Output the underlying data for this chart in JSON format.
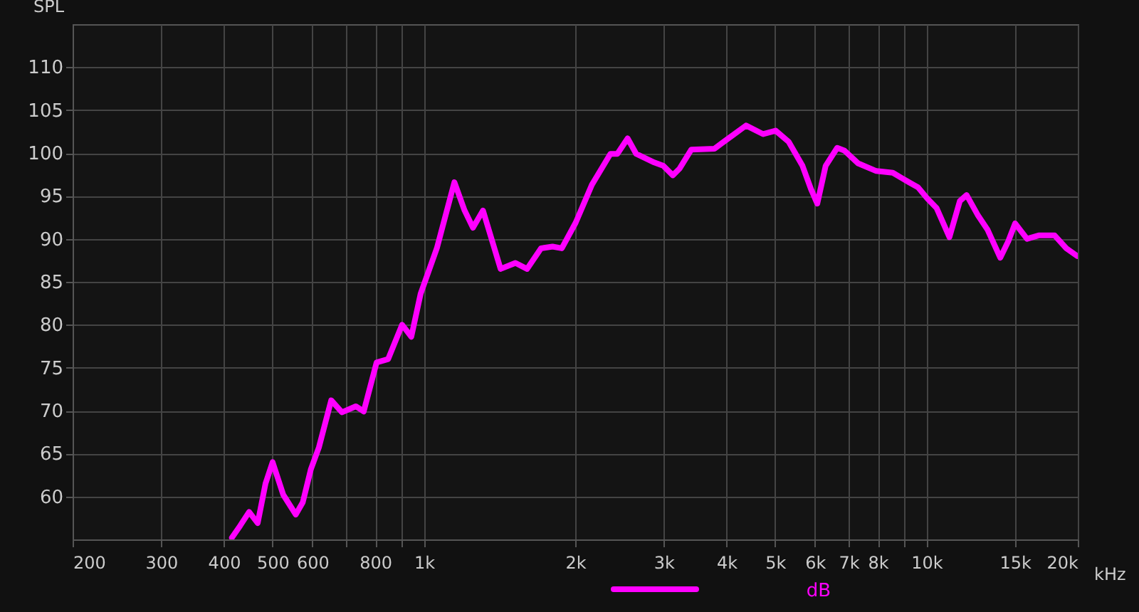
{
  "chart_data": {
    "type": "line",
    "ylabel": "SPL",
    "annotations": [
      "dB"
    ],
    "x": [
      415,
      431,
      449,
      467,
      484,
      500,
      525,
      556,
      574,
      596,
      618,
      654,
      687,
      732,
      759,
      805,
      849,
      905,
      944,
      985,
      1061,
      1150,
      1205,
      1252,
      1311,
      1421,
      1521,
      1604,
      1710,
      1803,
      1881,
      2005,
      2159,
      2350,
      2426,
      2543,
      2645,
      2873,
      2996,
      3128,
      3228,
      3405,
      3785,
      4122,
      4375,
      4732,
      5011,
      5319,
      5667,
      5890,
      6064,
      6300,
      6643,
      6860,
      7310,
      7946,
      8570,
      9223,
      9620,
      10040,
      10470,
      11110,
      11650,
      12020,
      12670,
      13220,
      14020,
      14540,
      15010,
      15850,
      16720,
      17990,
      18980,
      19950
    ],
    "series": [
      {
        "color": "#ff00ff",
        "values": [
          55.2,
          56.6,
          58.2,
          56.9,
          61.5,
          64.0,
          60.2,
          57.9,
          59.3,
          63.2,
          65.7,
          71.2,
          69.8,
          70.5,
          69.9,
          75.6,
          76.0,
          80.0,
          78.6,
          83.6,
          88.9,
          96.6,
          93.3,
          91.3,
          93.3,
          86.5,
          87.2,
          86.5,
          88.9,
          89.1,
          88.9,
          91.9,
          96.3,
          99.9,
          99.9,
          101.7,
          99.9,
          98.9,
          98.5,
          97.4,
          98.2,
          100.4,
          100.5,
          102.1,
          103.2,
          102.2,
          102.6,
          101.3,
          98.5,
          95.8,
          94.1,
          98.5,
          100.6,
          100.3,
          98.8,
          97.9,
          97.7,
          96.6,
          96.0,
          94.7,
          93.6,
          90.2,
          94.4,
          95.1,
          92.7,
          91.1,
          87.8,
          89.7,
          91.8,
          90.0,
          90.4,
          90.4,
          88.9,
          88.0
        ]
      }
    ],
    "log": "x",
    "xlim": [
      200,
      20000
    ],
    "xticks": [
      200,
      300,
      400,
      500,
      600,
      {
        "value": 700,
        "label": null
      },
      800,
      {
        "value": 900,
        "label": null
      },
      {
        "value": 1000,
        "label": "1k"
      },
      {
        "value": 2000,
        "label": "2k"
      },
      {
        "value": 3000,
        "label": "3k"
      },
      {
        "value": 4000,
        "label": "4k"
      },
      {
        "value": 5000,
        "label": "5k"
      },
      {
        "value": 6000,
        "label": "6k"
      },
      {
        "value": 7000,
        "label": "7k"
      },
      {
        "value": 8000,
        "label": "8k"
      },
      {
        "value": 9000,
        "label": null
      },
      {
        "value": 10000,
        "label": "10k"
      },
      {
        "value": 15000,
        "label": "15k"
      },
      {
        "value": 20000,
        "label": "20k"
      }
    ],
    "xlabel": "kHz",
    "ylim": [
      55,
      115
    ],
    "yticks": [
      60,
      65,
      70,
      75,
      80,
      85,
      90,
      95,
      100,
      105,
      110
    ],
    "grid": true,
    "marker": "none",
    "line_style": "solid"
  }
}
